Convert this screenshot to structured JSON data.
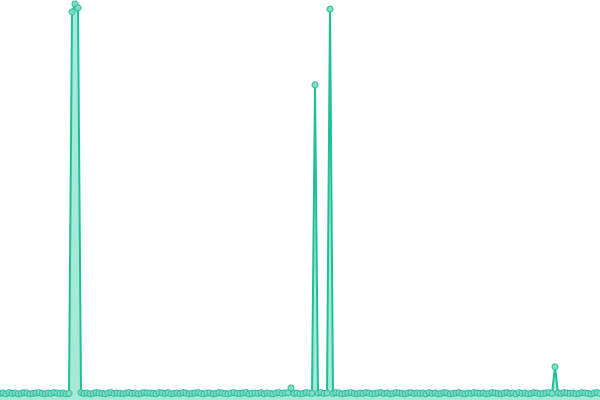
{
  "chart_data": {
    "type": "area",
    "title": "",
    "xlabel": "",
    "ylabel": "",
    "ylim": [
      0,
      100
    ],
    "grid": false,
    "legend": "none",
    "colors": {
      "line": "#1fbf9a",
      "fill": "#8fe3cc",
      "marker_fill": "#7fdcc3",
      "marker_stroke": "#2bbf9a"
    },
    "x": "index 0-200",
    "values": [
      0.4,
      0.5,
      0.3,
      0.6,
      0.4,
      0.5,
      0.3,
      0.4,
      0.6,
      0.5,
      0.3,
      0.4,
      0.5,
      0.6,
      0.4,
      0.3,
      0.5,
      0.4,
      0.6,
      0.5,
      0.4,
      0.5,
      0.3,
      0.4,
      98,
      100,
      99,
      0.6,
      0.4,
      0.5,
      0.3,
      0.4,
      0.6,
      0.5,
      0.4,
      0.3,
      0.5,
      0.6,
      0.4,
      0.5,
      0.4,
      0.3,
      0.5,
      0.6,
      0.4,
      0.5,
      0.3,
      0.4,
      0.6,
      0.5,
      0.5,
      0.4,
      0.3,
      0.6,
      0.5,
      0.4,
      0.6,
      0.3,
      0.4,
      0.5,
      0.4,
      0.6,
      0.5,
      0.3,
      0.4,
      0.5,
      0.6,
      0.4,
      0.3,
      0.5,
      0.5,
      0.3,
      0.4,
      0.6,
      0.5,
      0.4,
      0.3,
      0.5,
      0.6,
      0.4,
      0.4,
      0.5,
      0.6,
      0.3,
      0.4,
      0.5,
      0.4,
      0.6,
      0.3,
      0.5,
      0.4,
      0.3,
      0.5,
      0.6,
      0.4,
      0.5,
      0.6,
      1.8,
      0.4,
      0.5,
      0.3,
      0.4,
      0.6,
      0.5,
      0.4,
      79.3,
      0.5,
      0.6,
      0.4,
      0.5,
      98.7,
      0.4,
      0.6,
      0.5,
      0.3,
      0.4,
      0.5,
      0.6,
      0.4,
      0.3,
      0.5,
      0.4,
      0.6,
      0.5,
      0.3,
      0.4,
      0.5,
      0.6,
      0.4,
      0.5,
      0.3,
      0.4,
      0.6,
      0.5,
      0.4,
      0.3,
      0.5,
      0.6,
      0.4,
      0.5,
      0.4,
      0.5,
      0.3,
      0.6,
      0.4,
      0.5,
      0.3,
      0.4,
      0.6,
      0.5,
      0.3,
      0.4,
      0.5,
      0.6,
      0.4,
      0.3,
      0.5,
      0.4,
      0.6,
      0.5,
      0.4,
      0.5,
      0.3,
      0.4,
      0.6,
      0.5,
      0.4,
      0.3,
      0.5,
      0.6,
      0.4,
      0.5,
      0.3,
      0.6,
      0.4,
      0.5,
      0.3,
      0.4,
      0.6,
      0.5,
      0.3,
      0.4,
      0.5,
      0.6,
      0.4,
      7.2,
      0.5,
      0.4,
      0.6,
      0.5,
      0.4,
      0.5,
      0.3,
      0.4,
      0.6,
      0.5,
      0.4,
      0.3,
      0.5,
      0.6,
      0.4
    ]
  }
}
